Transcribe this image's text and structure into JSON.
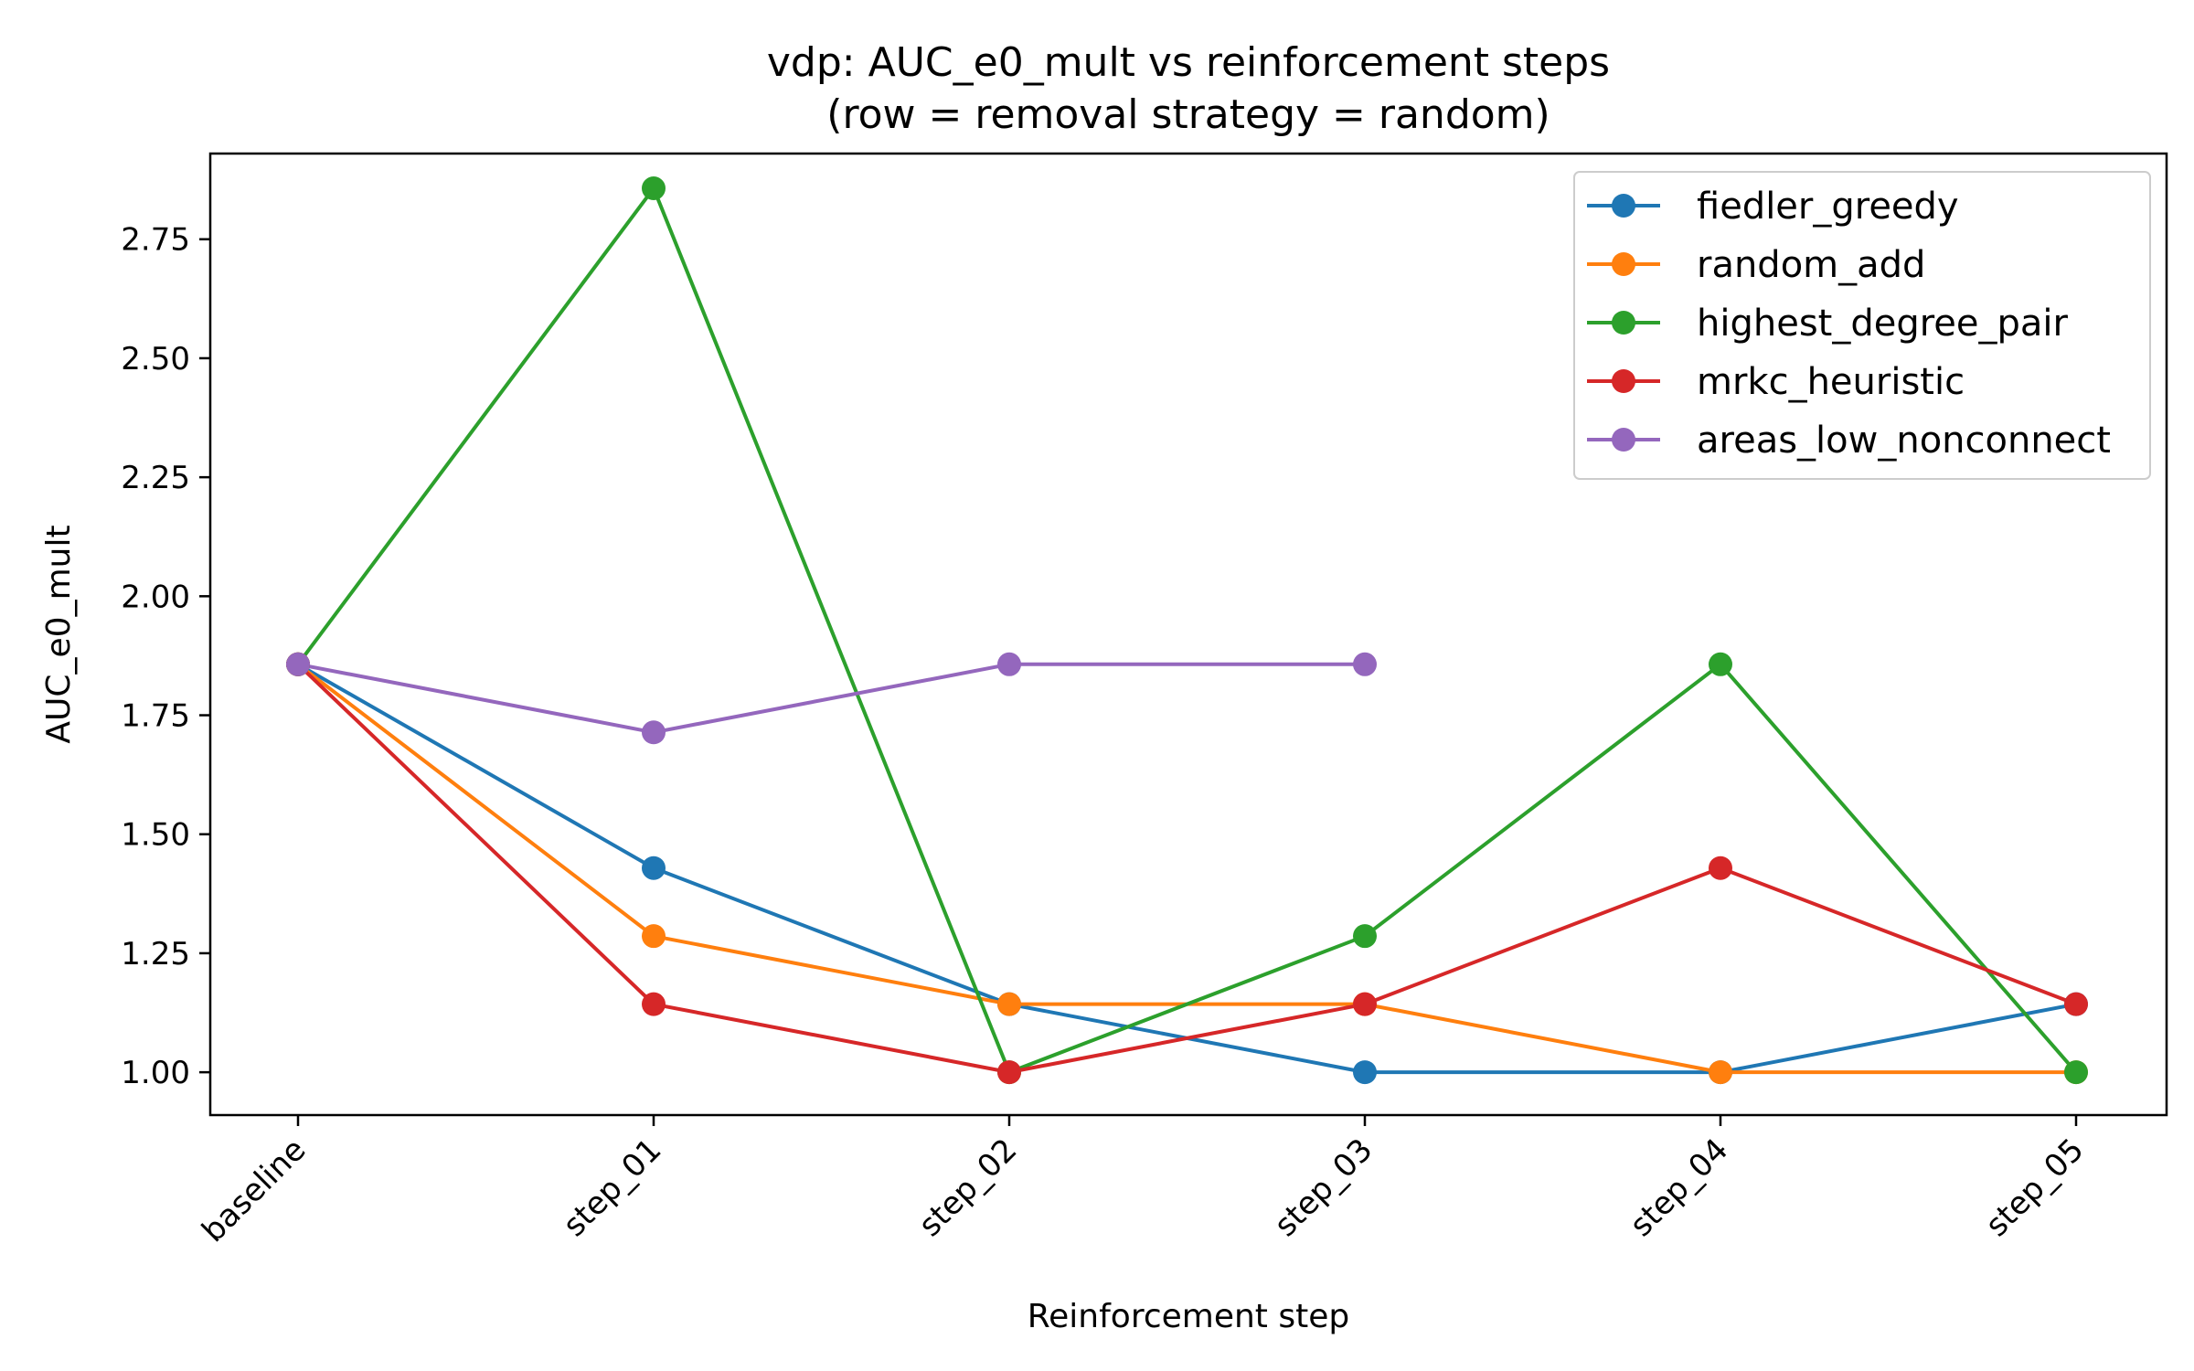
{
  "chart_data": {
    "type": "line",
    "title": "vdp: AUC_e0_mult vs reinforcement steps",
    "subtitle": "(row = removal strategy = random)",
    "xlabel": "Reinforcement step",
    "ylabel": "AUC_e0_mult",
    "categories": [
      "baseline",
      "step_01",
      "step_02",
      "step_03",
      "step_04",
      "step_05"
    ],
    "ylim": [
      0.91,
      2.93
    ],
    "yticks": [
      1.0,
      1.25,
      1.5,
      1.75,
      2.0,
      2.25,
      2.5,
      2.75
    ],
    "ytick_labels": [
      "1.00",
      "1.25",
      "1.50",
      "1.75",
      "2.00",
      "2.25",
      "2.50",
      "2.75"
    ],
    "grid": false,
    "legend_position": "top-right",
    "series": [
      {
        "name": "fiedler_greedy",
        "color": "#1f77b4",
        "values": [
          1.857,
          1.429,
          1.143,
          1.0,
          1.0,
          1.143
        ]
      },
      {
        "name": "random_add",
        "color": "#ff7f0e",
        "values": [
          1.857,
          1.286,
          1.143,
          1.143,
          1.0,
          1.0
        ]
      },
      {
        "name": "highest_degree_pair",
        "color": "#2ca02c",
        "values": [
          1.857,
          2.857,
          1.0,
          1.286,
          1.857,
          1.0
        ]
      },
      {
        "name": "mrkc_heuristic",
        "color": "#d62728",
        "values": [
          1.857,
          1.143,
          1.0,
          1.143,
          1.429,
          1.143
        ]
      },
      {
        "name": "areas_low_nonconnect",
        "color": "#9467bd",
        "values": [
          1.857,
          1.714,
          1.857,
          1.857,
          null,
          null
        ]
      }
    ]
  }
}
